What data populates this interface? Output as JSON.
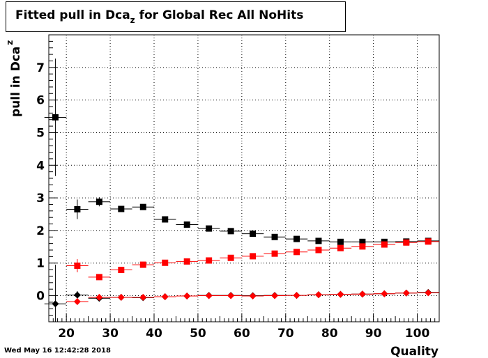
{
  "chart_data": {
    "type": "scatter",
    "title": "Fitted pull in Dca",
    "title_subscript": "z",
    "title_suffix": " for Global Rec All NoHits",
    "xlabel": "Quality",
    "ylabel": "pull in Dca",
    "ylabel_subscript": "z",
    "xlim": [
      16,
      105
    ],
    "ylim": [
      -0.8,
      8.0
    ],
    "x_ticks": [
      20,
      30,
      40,
      50,
      60,
      70,
      80,
      90,
      100
    ],
    "y_ticks": [
      0,
      1,
      2,
      3,
      4,
      5,
      6,
      7
    ],
    "grid": true,
    "x_bin_half_width": 2.5,
    "series": [
      {
        "marker": "square",
        "color": "#000000",
        "points": [
          {
            "x": 17.5,
            "y": 5.47,
            "err": 1.8
          },
          {
            "x": 22.5,
            "y": 2.65,
            "err": 0.3
          },
          {
            "x": 27.5,
            "y": 2.88,
            "err": 0.14
          },
          {
            "x": 32.5,
            "y": 2.66,
            "err": 0.05
          },
          {
            "x": 37.5,
            "y": 2.72,
            "err": 0.04
          },
          {
            "x": 42.5,
            "y": 2.34,
            "err": 0.03
          },
          {
            "x": 47.5,
            "y": 2.18,
            "err": 0.03
          },
          {
            "x": 52.5,
            "y": 2.06,
            "err": 0.02
          },
          {
            "x": 57.5,
            "y": 1.98,
            "err": 0.02
          },
          {
            "x": 62.5,
            "y": 1.9,
            "err": 0.02
          },
          {
            "x": 67.5,
            "y": 1.8,
            "err": 0.02
          },
          {
            "x": 72.5,
            "y": 1.74,
            "err": 0.02
          },
          {
            "x": 77.5,
            "y": 1.68,
            "err": 0.02
          },
          {
            "x": 82.5,
            "y": 1.65,
            "err": 0.02
          },
          {
            "x": 87.5,
            "y": 1.65,
            "err": 0.02
          },
          {
            "x": 92.5,
            "y": 1.65,
            "err": 0.02
          },
          {
            "x": 97.5,
            "y": 1.66,
            "err": 0.02
          },
          {
            "x": 102.5,
            "y": 1.68,
            "err": 0.02
          }
        ]
      },
      {
        "marker": "square",
        "color": "#ff0000",
        "points": [
          {
            "x": 22.5,
            "y": 0.92,
            "err": 0.2
          },
          {
            "x": 27.5,
            "y": 0.57,
            "err": 0.05
          },
          {
            "x": 32.5,
            "y": 0.79,
            "err": 0.03
          },
          {
            "x": 37.5,
            "y": 0.95,
            "err": 0.02
          },
          {
            "x": 42.5,
            "y": 1.01,
            "err": 0.02
          },
          {
            "x": 47.5,
            "y": 1.05,
            "err": 0.02
          },
          {
            "x": 52.5,
            "y": 1.08,
            "err": 0.02
          },
          {
            "x": 57.5,
            "y": 1.16,
            "err": 0.02
          },
          {
            "x": 62.5,
            "y": 1.21,
            "err": 0.02
          },
          {
            "x": 67.5,
            "y": 1.29,
            "err": 0.02
          },
          {
            "x": 72.5,
            "y": 1.34,
            "err": 0.02
          },
          {
            "x": 77.5,
            "y": 1.4,
            "err": 0.02
          },
          {
            "x": 82.5,
            "y": 1.46,
            "err": 0.02
          },
          {
            "x": 87.5,
            "y": 1.51,
            "err": 0.02
          },
          {
            "x": 92.5,
            "y": 1.57,
            "err": 0.02
          },
          {
            "x": 97.5,
            "y": 1.63,
            "err": 0.02
          },
          {
            "x": 102.5,
            "y": 1.66,
            "err": 0.02
          }
        ]
      },
      {
        "marker": "diamond",
        "color": "#000000",
        "points": [
          {
            "x": 17.5,
            "y": -0.25,
            "err": 1.2
          },
          {
            "x": 22.5,
            "y": 0.02,
            "err": 0.12
          },
          {
            "x": 27.5,
            "y": -0.08,
            "err": 0.08
          },
          {
            "x": 32.5,
            "y": -0.05,
            "err": 0.03
          },
          {
            "x": 37.5,
            "y": -0.06,
            "err": 0.02
          },
          {
            "x": 42.5,
            "y": -0.03,
            "err": 0.02
          },
          {
            "x": 47.5,
            "y": -0.01,
            "err": 0.02
          },
          {
            "x": 52.5,
            "y": 0.01,
            "err": 0.02
          },
          {
            "x": 57.5,
            "y": 0.01,
            "err": 0.02
          },
          {
            "x": 62.5,
            "y": 0.0,
            "err": 0.02
          },
          {
            "x": 67.5,
            "y": 0.01,
            "err": 0.02
          },
          {
            "x": 72.5,
            "y": 0.01,
            "err": 0.02
          },
          {
            "x": 77.5,
            "y": 0.03,
            "err": 0.02
          },
          {
            "x": 82.5,
            "y": 0.04,
            "err": 0.02
          },
          {
            "x": 87.5,
            "y": 0.05,
            "err": 0.02
          },
          {
            "x": 92.5,
            "y": 0.06,
            "err": 0.02
          },
          {
            "x": 97.5,
            "y": 0.08,
            "err": 0.02
          },
          {
            "x": 102.5,
            "y": 0.1,
            "err": 0.02
          }
        ]
      },
      {
        "marker": "diamond",
        "color": "#ff0000",
        "points": [
          {
            "x": 22.5,
            "y": -0.18,
            "err": 0.1
          },
          {
            "x": 27.5,
            "y": -0.05,
            "err": 0.04
          },
          {
            "x": 32.5,
            "y": -0.05,
            "err": 0.02
          },
          {
            "x": 37.5,
            "y": -0.05,
            "err": 0.02
          },
          {
            "x": 42.5,
            "y": -0.03,
            "err": 0.02
          },
          {
            "x": 47.5,
            "y": -0.01,
            "err": 0.02
          },
          {
            "x": 52.5,
            "y": 0.0,
            "err": 0.02
          },
          {
            "x": 57.5,
            "y": 0.0,
            "err": 0.02
          },
          {
            "x": 62.5,
            "y": -0.01,
            "err": 0.02
          },
          {
            "x": 67.5,
            "y": 0.0,
            "err": 0.02
          },
          {
            "x": 72.5,
            "y": 0.01,
            "err": 0.02
          },
          {
            "x": 77.5,
            "y": 0.03,
            "err": 0.02
          },
          {
            "x": 82.5,
            "y": 0.04,
            "err": 0.02
          },
          {
            "x": 87.5,
            "y": 0.05,
            "err": 0.02
          },
          {
            "x": 92.5,
            "y": 0.06,
            "err": 0.02
          },
          {
            "x": 97.5,
            "y": 0.08,
            "err": 0.02
          },
          {
            "x": 102.5,
            "y": 0.09,
            "err": 0.02
          }
        ]
      }
    ]
  },
  "timestamp": "Wed May 16 12:42:28 2018"
}
